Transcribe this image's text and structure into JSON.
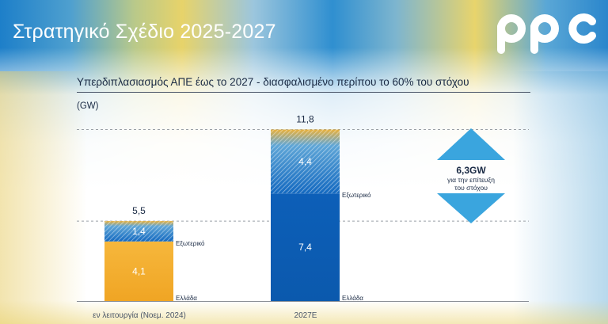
{
  "header": {
    "title": "Στρατηγικό Σχέδιο 2025-2027",
    "brand": "ppc"
  },
  "colors": {
    "greece": "#f4ac2f",
    "abroad_low": "#3b8dd0",
    "abroad_high": "#0f62ba",
    "title_text": "#ffffff",
    "arrow": "#3aa5de"
  },
  "annotation": {
    "value": "6,3GW",
    "line1": "για την επίτευξη",
    "line2": "του στόχου"
  },
  "chart_data": {
    "type": "bar",
    "stacked": true,
    "title": "Υπερδιπλασιασμός ΑΠΕ έως το 2027 - διασφαλισμένο περίπου το 60% του στόχου",
    "ylabel": "(GW)",
    "categories": [
      "εν λειτουργία (Νοεμ. 2024)",
      "2027Ε"
    ],
    "series": [
      {
        "name": "Ελλάδα",
        "values": [
          4.1,
          7.4
        ],
        "labels": [
          "4,1",
          "7,4"
        ]
      },
      {
        "name": "Εξωτερικό",
        "values": [
          1.4,
          4.4
        ],
        "labels": [
          "1,4",
          "4,4"
        ]
      }
    ],
    "totals": [
      5.5,
      11.8
    ],
    "total_labels": [
      "5,5",
      "11,8"
    ],
    "ylim": [
      0,
      12
    ],
    "grid": false,
    "reference_lines": [
      5.5,
      11.8
    ]
  }
}
